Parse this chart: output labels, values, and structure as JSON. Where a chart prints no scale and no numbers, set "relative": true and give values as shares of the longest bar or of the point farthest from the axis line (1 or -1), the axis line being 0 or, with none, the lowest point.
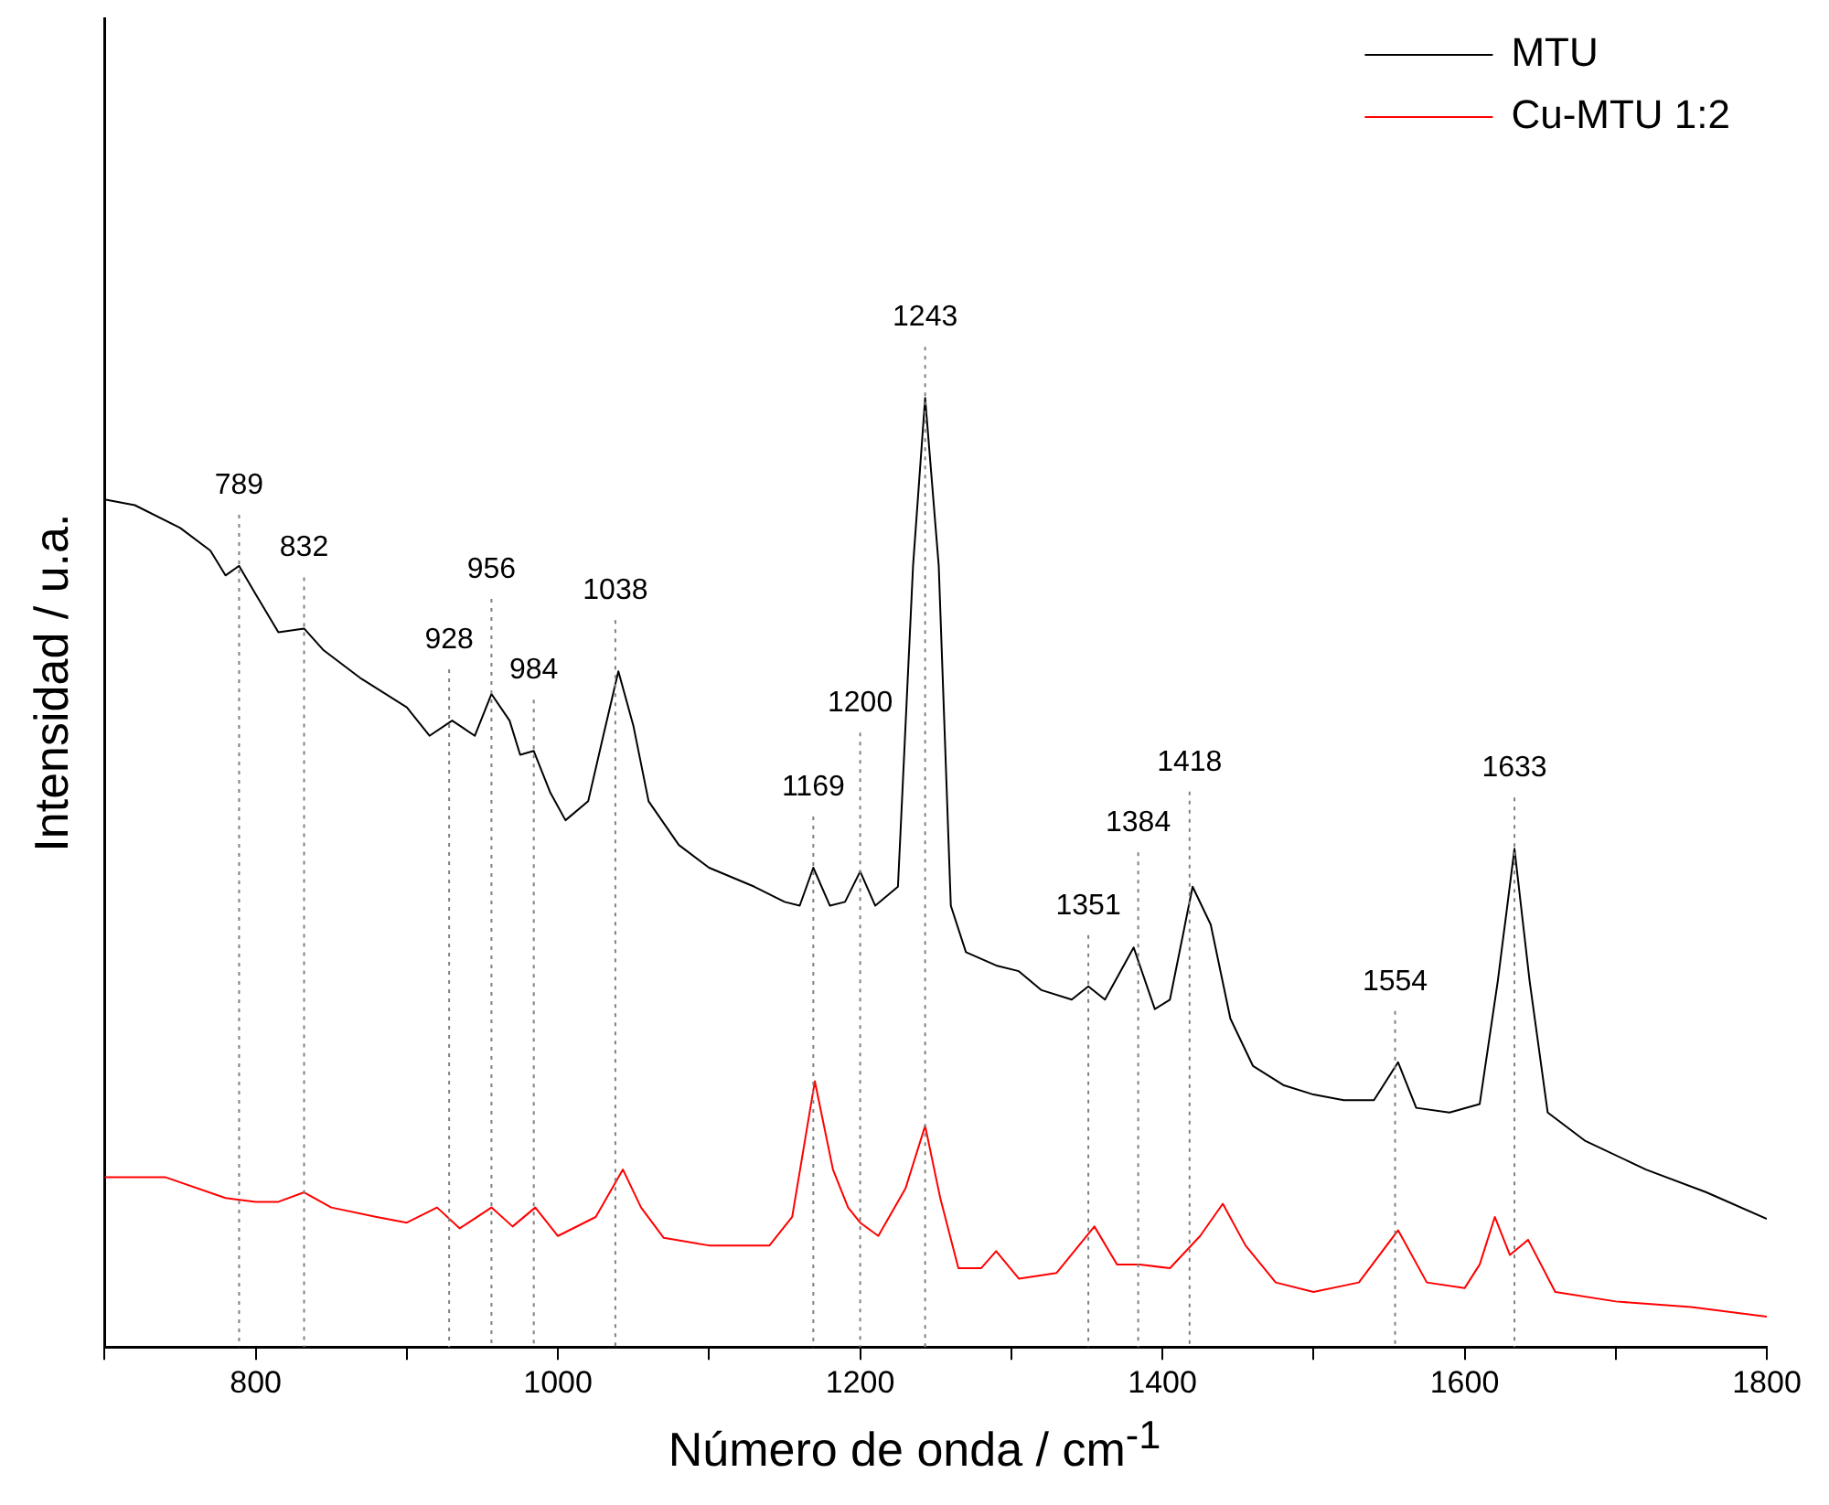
{
  "chart_data": {
    "type": "line",
    "xlabel": "Número de onda / cm$^{-1}$",
    "ylabel": "Intensidad / u.a.",
    "relative": true,
    "legend": "top right",
    "marker": "none",
    "line_style": "solid",
    "grid": false,
    "xlim": [
      700,
      1800
    ],
    "xticks": [
      {
        "value": 700,
        "label": null
      },
      800,
      {
        "value": 900,
        "label": null
      },
      1000,
      {
        "value": 1100,
        "label": null
      },
      1200,
      {
        "value": 1300,
        "label": null
      },
      1400,
      {
        "value": 1500,
        "label": null
      },
      1600,
      {
        "value": 1700,
        "label": null
      },
      1800
    ],
    "series": [
      {
        "name": "MTU",
        "color": "#000000",
        "x": [
          700,
          720,
          750,
          770,
          780,
          789,
          800,
          815,
          832,
          845,
          870,
          900,
          915,
          930,
          945,
          956,
          968,
          975,
          984,
          995,
          1005,
          1020,
          1030,
          1040,
          1050,
          1060,
          1080,
          1100,
          1130,
          1150,
          1160,
          1169,
          1180,
          1190,
          1200,
          1210,
          1225,
          1235,
          1243,
          1252,
          1260,
          1270,
          1290,
          1305,
          1320,
          1340,
          1351,
          1362,
          1381,
          1395,
          1405,
          1420,
          1432,
          1445,
          1460,
          1480,
          1500,
          1520,
          1540,
          1556,
          1568,
          1590,
          1610,
          1622,
          1633,
          1643,
          1655,
          1680,
          1720,
          1760,
          1800
        ],
        "values": [
          0.893,
          0.887,
          0.863,
          0.839,
          0.813,
          0.823,
          0.793,
          0.753,
          0.757,
          0.734,
          0.704,
          0.674,
          0.644,
          0.66,
          0.644,
          0.688,
          0.66,
          0.624,
          0.628,
          0.584,
          0.555,
          0.575,
          0.644,
          0.712,
          0.654,
          0.575,
          0.529,
          0.505,
          0.485,
          0.469,
          0.465,
          0.505,
          0.465,
          0.469,
          0.501,
          0.465,
          0.485,
          0.823,
          1,
          0.823,
          0.465,
          0.416,
          0.402,
          0.396,
          0.376,
          0.366,
          0.38,
          0.366,
          0.421,
          0.356,
          0.366,
          0.485,
          0.445,
          0.346,
          0.296,
          0.276,
          0.266,
          0.26,
          0.26,
          0.3,
          0.252,
          0.247,
          0.256,
          0.386,
          0.525,
          0.386,
          0.247,
          0.217,
          0.187,
          0.163,
          0.135
        ]
      },
      {
        "name": "Cu-MTU 1:2",
        "color": "#ff0000",
        "x": [
          700,
          740,
          780,
          800,
          815,
          832,
          850,
          880,
          900,
          920,
          935,
          956,
          970,
          985,
          1000,
          1025,
          1043,
          1055,
          1070,
          1100,
          1140,
          1155,
          1170,
          1182,
          1192,
          1200,
          1212,
          1230,
          1243,
          1253,
          1265,
          1280,
          1290,
          1305,
          1330,
          1355,
          1370,
          1385,
          1405,
          1425,
          1440,
          1455,
          1475,
          1500,
          1530,
          1556,
          1575,
          1600,
          1610,
          1620,
          1630,
          1642,
          1660,
          1700,
          1750,
          1800
        ],
        "values": [
          0.179,
          0.179,
          0.157,
          0.153,
          0.153,
          0.163,
          0.147,
          0.137,
          0.131,
          0.147,
          0.125,
          0.147,
          0.127,
          0.147,
          0.117,
          0.137,
          0.187,
          0.147,
          0.115,
          0.107,
          0.107,
          0.137,
          0.28,
          0.187,
          0.147,
          0.131,
          0.117,
          0.167,
          0.233,
          0.157,
          0.083,
          0.083,
          0.101,
          0.072,
          0.078,
          0.127,
          0.087,
          0.087,
          0.083,
          0.117,
          0.151,
          0.107,
          0.068,
          0.058,
          0.068,
          0.123,
          0.068,
          0.062,
          0.087,
          0.137,
          0.097,
          0.113,
          0.058,
          0.048,
          0.042,
          0.032
        ]
      }
    ],
    "ref_lines": [
      {
        "axis": "x",
        "value": 789,
        "label": "789",
        "color": "#808080",
        "line_style": "dotted"
      },
      {
        "axis": "x",
        "value": 832,
        "label": "832",
        "color": "#808080",
        "line_style": "dotted"
      },
      {
        "axis": "x",
        "value": 928,
        "label": "928",
        "color": "#808080",
        "line_style": "dotted"
      },
      {
        "axis": "x",
        "value": 956,
        "label": "956",
        "color": "#808080",
        "line_style": "dotted"
      },
      {
        "axis": "x",
        "value": 984,
        "label": "984",
        "color": "#808080",
        "line_style": "dotted"
      },
      {
        "axis": "x",
        "value": 1038,
        "label": "1038",
        "color": "#808080",
        "line_style": "dotted"
      },
      {
        "axis": "x",
        "value": 1169,
        "label": "1169",
        "color": "#808080",
        "line_style": "dotted"
      },
      {
        "axis": "x",
        "value": 1200,
        "label": "1200",
        "color": "#808080",
        "line_style": "dotted"
      },
      {
        "axis": "x",
        "value": 1243,
        "label": "1243",
        "color": "#808080",
        "line_style": "dotted"
      },
      {
        "axis": "x",
        "value": 1351,
        "label": "1351",
        "color": "#808080",
        "line_style": "dotted"
      },
      {
        "axis": "x",
        "value": 1384,
        "label": "1384",
        "color": "#808080",
        "line_style": "dotted"
      },
      {
        "axis": "x",
        "value": 1418,
        "label": "1418",
        "color": "#808080",
        "line_style": "dotted"
      },
      {
        "axis": "x",
        "value": 1554,
        "label": "1554",
        "color": "#808080",
        "line_style": "dotted"
      },
      {
        "axis": "x",
        "value": 1633,
        "label": "1633",
        "color": "#808080",
        "line_style": "dotted"
      }
    ]
  }
}
